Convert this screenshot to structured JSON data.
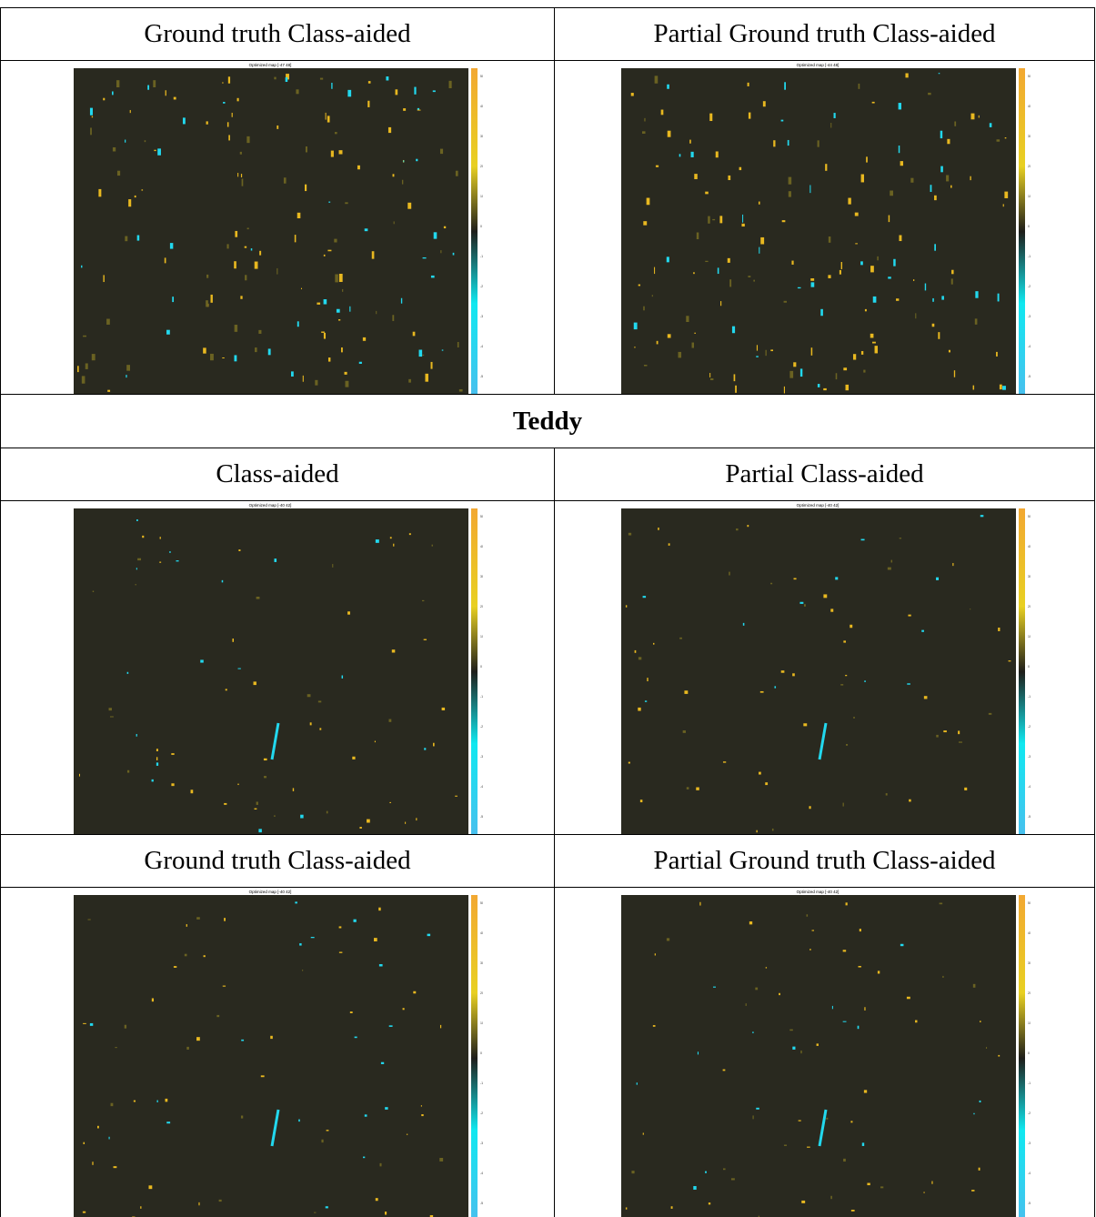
{
  "table": {
    "rows": [
      {
        "cells": [
          {
            "caption": "Ground truth Class-aided",
            "image_title": "Optimized map [-47 48]"
          },
          {
            "caption": "Partial Ground truth Class-aided",
            "image_title": "Optimized map [-44 48]"
          }
        ]
      },
      {
        "heading": "Teddy"
      },
      {
        "cells": [
          {
            "caption": "Class-aided",
            "image_title": "Optimized map [-40 42]"
          },
          {
            "caption": "Partial Class-aided",
            "image_title": "Optimized map [-40 42]"
          }
        ]
      },
      {
        "cells": [
          {
            "caption": "Ground truth Class-aided",
            "image_title": "Optimized map [-40 42]"
          },
          {
            "caption": "Partial Ground truth Class-aided",
            "image_title": "Optimized map [-40 42]"
          }
        ]
      }
    ],
    "colorbar_ticks": [
      50,
      40,
      30,
      20,
      10,
      0,
      -10,
      -20,
      -30,
      -40,
      -50
    ]
  }
}
